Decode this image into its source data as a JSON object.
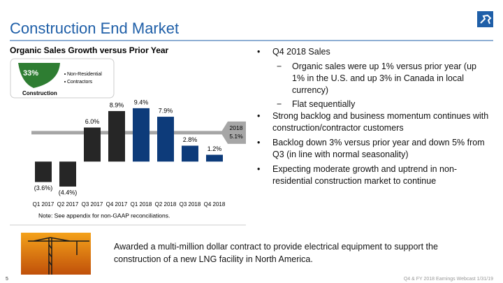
{
  "header": {
    "title": "Construction End Market"
  },
  "chart_data": {
    "type": "bar",
    "title": "Organic Sales Growth versus Prior Year",
    "categories": [
      "Q1 2017",
      "Q2 2017",
      "Q3 2017",
      "Q4 2017",
      "Q1 2018",
      "Q2 2018",
      "Q3 2018",
      "Q4 2018"
    ],
    "values": [
      -3.6,
      -4.4,
      6.0,
      8.9,
      9.4,
      7.9,
      2.8,
      1.2
    ],
    "value_labels": [
      "(3.6%)",
      "(4.4%)",
      "6.0%",
      "8.9%",
      "9.4%",
      "7.9%",
      "2.8%",
      "1.2%"
    ],
    "colors": [
      "#262626",
      "#262626",
      "#262626",
      "#262626",
      "#0d3b7a",
      "#0d3b7a",
      "#0d3b7a",
      "#0d3b7a"
    ],
    "ylim": [
      -6,
      10
    ],
    "reference": {
      "value": 5.1,
      "label": "2018",
      "value_label": "5.1%",
      "color": "#a6a6a6"
    },
    "note": "Note: See appendix for non-GAAP reconciliations."
  },
  "badge": {
    "share": "33%",
    "label": "Construction",
    "items": [
      "Non-Residential",
      "Contractors"
    ]
  },
  "bullets": [
    {
      "text": "Q4 2018 Sales",
      "sub": [
        "Organic sales were up 1% versus prior year (up 1% in the U.S. and up 3% in Canada in local currency)",
        "Flat sequentially"
      ]
    },
    {
      "text": "Strong backlog and business momentum continues with construction/contractor customers"
    },
    {
      "text": "Backlog down 3% versus prior year and down 5% from Q3 (in line with normal seasonality)"
    },
    {
      "text": "Expecting moderate growth and uptrend in non-residential construction market to continue"
    }
  ],
  "callout": "Awarded a multi-million dollar contract to provide electrical equipment to support the construction of a new LNG facility in North America.",
  "footer": {
    "page": "5",
    "event": "Q4 & FY 2018 Earnings Webcast 1/31/19"
  }
}
